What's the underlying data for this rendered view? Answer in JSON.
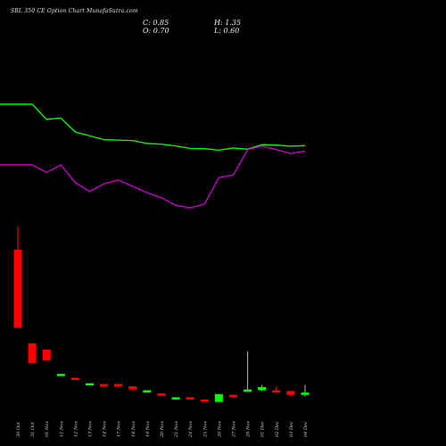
{
  "header": {
    "title": "SBL 350 CE Option Chart MunafaSutra.com",
    "close": "C: 0.85",
    "high": "H: 1.35",
    "open": "O: 0.70",
    "low": "L: 0.60"
  },
  "colors": {
    "background": "#000000",
    "bullish": "#00ff00",
    "bearish": "#ff0000",
    "green_line": "#00ff00",
    "magenta_line": "#cc00cc",
    "wick": "#ffffff"
  },
  "chart_data": {
    "type": "candlestick",
    "categories": [
      "30 Oct",
      "31 Oct",
      "01 Nov",
      "11 Nov",
      "12 Nov",
      "13 Nov",
      "14 Nov",
      "17 Nov",
      "18 Nov",
      "19 Nov",
      "20 Nov",
      "21 Nov",
      "24 Nov",
      "25 Nov",
      "26 Nov",
      "27 Nov",
      "28 Nov",
      "01 Dec",
      "02 Dec",
      "03 Dec",
      "04 Dec"
    ],
    "ohlc": [
      {
        "o": 10.0,
        "h": 11.5,
        "l": 5.0,
        "c": 5.0
      },
      {
        "o": 4.0,
        "h": 4.0,
        "l": 2.75,
        "c": 2.75
      },
      {
        "o": 3.6,
        "h": 3.6,
        "l": 2.9,
        "c": 2.9
      },
      {
        "o": 1.95,
        "h": 2.05,
        "l": 1.95,
        "c": 2.05
      },
      {
        "o": 1.8,
        "h": 1.8,
        "l": 1.7,
        "c": 1.7
      },
      {
        "o": 1.4,
        "h": 1.45,
        "l": 1.4,
        "c": 1.45
      },
      {
        "o": 1.4,
        "h": 1.4,
        "l": 1.3,
        "c": 1.3
      },
      {
        "o": 1.4,
        "h": 1.4,
        "l": 1.25,
        "c": 1.25
      },
      {
        "o": 1.25,
        "h": 1.25,
        "l": 1.0,
        "c": 1.05
      },
      {
        "o": 0.85,
        "h": 1.0,
        "l": 0.85,
        "c": 1.0
      },
      {
        "o": 0.8,
        "h": 0.8,
        "l": 0.65,
        "c": 0.65
      },
      {
        "o": 0.5,
        "h": 0.55,
        "l": 0.4,
        "c": 0.55
      },
      {
        "o": 0.55,
        "h": 0.55,
        "l": 0.5,
        "c": 0.5
      },
      {
        "o": 0.4,
        "h": 0.4,
        "l": 0.3,
        "c": 0.3
      },
      {
        "o": 0.25,
        "h": 0.75,
        "l": 0.25,
        "c": 0.75
      },
      {
        "o": 0.7,
        "h": 0.75,
        "l": 0.65,
        "c": 0.65
      },
      {
        "o": 1.05,
        "h": 3.5,
        "l": 0.95,
        "c": 1.05
      },
      {
        "o": 1.0,
        "h": 1.35,
        "l": 0.95,
        "c": 1.2
      },
      {
        "o": 1.0,
        "h": 1.25,
        "l": 0.85,
        "c": 0.85
      },
      {
        "o": 0.95,
        "h": 0.95,
        "l": 0.6,
        "c": 0.7
      },
      {
        "o": 0.7,
        "h": 1.35,
        "l": 0.6,
        "c": 0.85
      }
    ],
    "series": [
      {
        "color": "#00ff00",
        "values": [
          9.2,
          9.2,
          8.6,
          8.65,
          8.1,
          7.95,
          7.8,
          7.78,
          7.76,
          7.65,
          7.62,
          7.55,
          7.45,
          7.44,
          7.38,
          7.47,
          7.42,
          7.6,
          7.58,
          7.54,
          7.56
        ]
      },
      {
        "color": "#cc00cc",
        "values": [
          6.8,
          6.8,
          6.5,
          6.8,
          6.1,
          5.75,
          6.05,
          6.2,
          5.95,
          5.7,
          5.5,
          5.2,
          5.1,
          5.25,
          6.3,
          6.4,
          7.4,
          7.55,
          7.4,
          7.25,
          7.35
        ]
      }
    ],
    "ylim": [
      0,
      12
    ],
    "grid": false,
    "legend": "none"
  }
}
